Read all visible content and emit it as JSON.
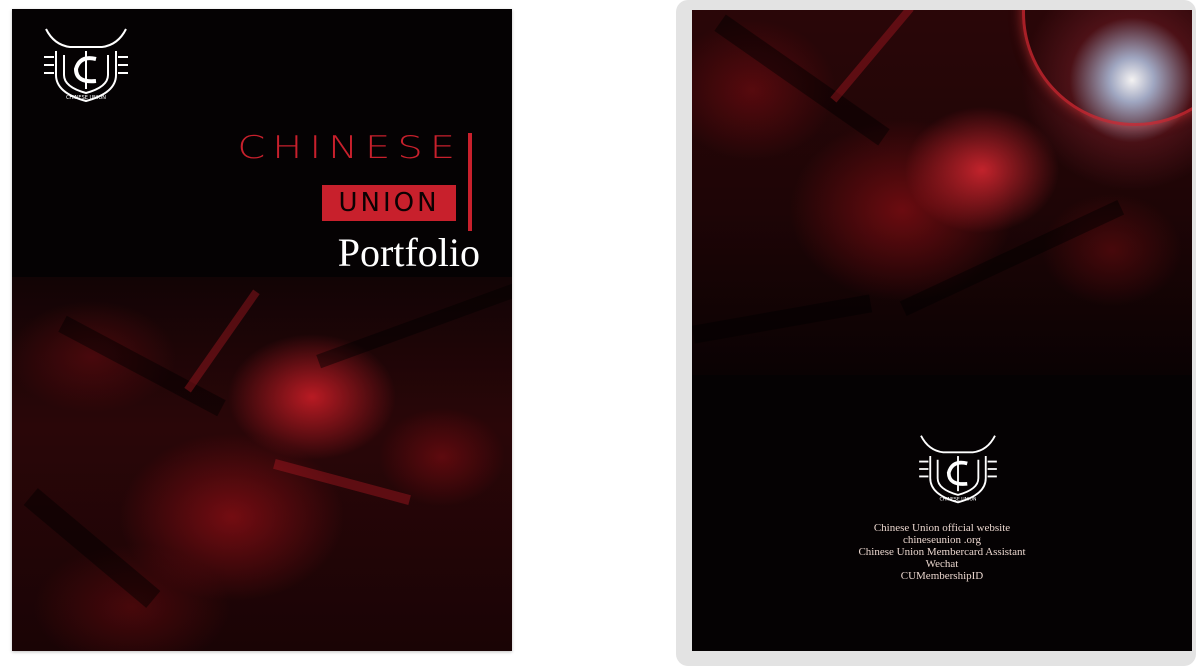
{
  "front_cover": {
    "title_line1": "CHINESE",
    "title_line2": "UNION",
    "title_line3": "Portfolio",
    "logo_text": "CHINESE UNION"
  },
  "back_cover": {
    "logo_text": "CHINESE UNION",
    "info_lines": [
      "Chinese  Union  official  website",
      "chineseunion .org",
      "Chinese  Union  Membercard Assistant",
      "Wechat",
      "CUMembershipID"
    ]
  },
  "colors": {
    "brand_red": "#c8202c",
    "background": "#050203",
    "text_light": "#ead6ce"
  }
}
